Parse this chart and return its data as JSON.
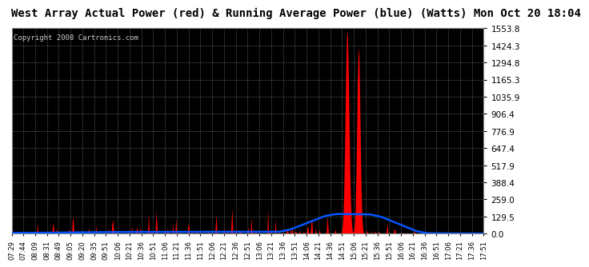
{
  "title": "West Array Actual Power (red) & Running Average Power (blue) (Watts) Mon Oct 20 18:04",
  "copyright": "Copyright 2008 Cartronics.com",
  "bg_color": "#ffffff",
  "plot_bg_color": "#000000",
  "grid_color": "#888888",
  "actual_color": "#ff0000",
  "avg_color": "#0055ff",
  "ymin": 0.0,
  "ymax": 1553.8,
  "ytick_vals": [
    0.0,
    129.5,
    259.0,
    388.4,
    517.9,
    647.4,
    776.9,
    906.4,
    1035.9,
    1165.3,
    1294.8,
    1424.3,
    1553.8
  ],
  "ytick_labels": [
    "0.0",
    "129.5",
    "259.0",
    "388.4",
    "517.9",
    "647.4",
    "776.9",
    "906.4",
    "1035.9",
    "1165.3",
    "1294.8",
    "1424.3",
    "1553.8"
  ],
  "xtick_labels": [
    "07:29",
    "07:44",
    "08:09",
    "08:31",
    "08:49",
    "09:05",
    "09:20",
    "09:35",
    "09:51",
    "10:06",
    "10:21",
    "10:36",
    "10:51",
    "11:06",
    "11:21",
    "11:36",
    "11:51",
    "12:06",
    "12:21",
    "12:36",
    "12:51",
    "13:06",
    "13:21",
    "13:36",
    "13:51",
    "14:06",
    "14:21",
    "14:36",
    "14:51",
    "15:06",
    "15:21",
    "15:36",
    "15:51",
    "16:06",
    "16:21",
    "16:36",
    "16:51",
    "17:06",
    "17:21",
    "17:36",
    "17:51"
  ],
  "title_fontsize": 10,
  "copyright_fontsize": 6.5,
  "ytick_fontsize": 7.5,
  "xtick_fontsize": 6.0
}
